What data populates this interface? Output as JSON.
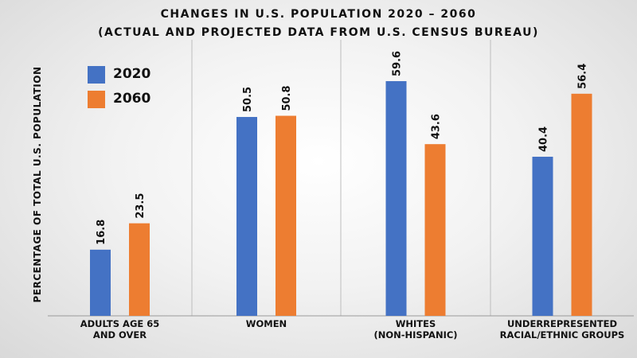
{
  "title": "CHANGES IN U.S. POPULATION 2020 – 2060",
  "subtitle": "(ACTUAL AND PROJECTED DATA FROM U.S. CENSUS BUREAU)",
  "legend": [
    {
      "label": "2020",
      "color": "#4472c4"
    },
    {
      "label": "2060",
      "color": "#ed7d31"
    }
  ],
  "chart_data": {
    "type": "bar",
    "title": "CHANGES IN U.S. POPULATION 2020 – 2060",
    "subtitle": "(ACTUAL AND PROJECTED DATA FROM U.S. CENSUS BUREAU)",
    "ylabel": "PERCENTAGE OF TOTAL U.S. POPULATION",
    "xlabel": "",
    "categories": [
      "ADULTS AGE 65\nAND OVER",
      "WOMEN",
      "WHITES\n(NON-HISPANIC)",
      "UNDERREPRESENTED\nRACIAL/ETHNIC GROUPS"
    ],
    "series": [
      {
        "name": "2020",
        "values": [
          16.8,
          50.5,
          59.6,
          40.4
        ],
        "color": "#4472c4"
      },
      {
        "name": "2060",
        "values": [
          23.5,
          50.8,
          43.6,
          56.4
        ],
        "color": "#ed7d31"
      }
    ],
    "ylim": [
      0,
      60
    ],
    "grid": false,
    "data_labels": true,
    "legend_position": "top-left"
  }
}
